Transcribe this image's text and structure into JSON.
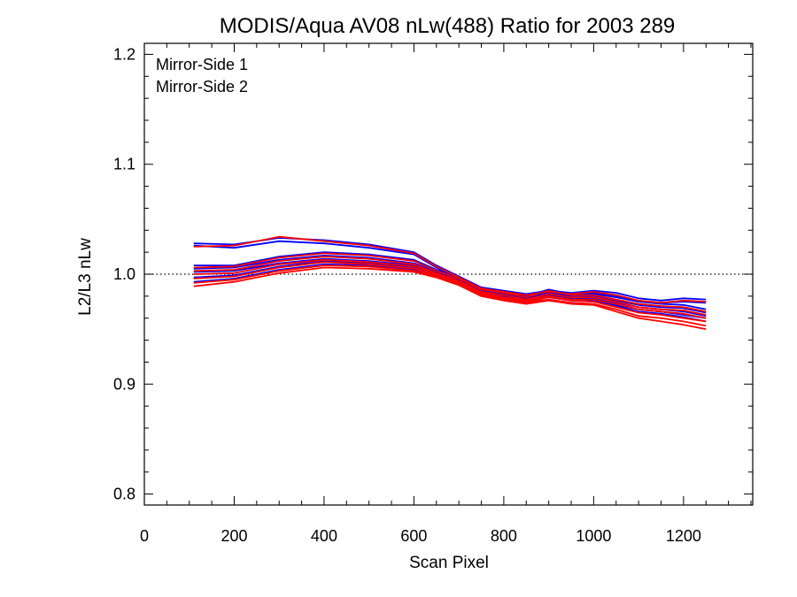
{
  "chart_data": {
    "type": "line",
    "title": "MODIS/Aqua AV08 nLw(488) Ratio for 2003 289",
    "xlabel": "Scan Pixel",
    "ylabel": "L2/L3 nLw",
    "xlim": [
      0,
      1354
    ],
    "ylim": [
      0.79,
      1.21
    ],
    "x_ticks": [
      "0",
      "200",
      "400",
      "600",
      "800",
      "1000",
      "1200"
    ],
    "y_ticks": [
      "0.8",
      "0.9",
      "1.0",
      "1.1",
      "1.2"
    ],
    "reference_line": {
      "y": 1.0,
      "style": "dotted",
      "color": "#000000"
    },
    "legend": {
      "placement": "top-left",
      "entries": [
        {
          "label": "Mirror-Side 1",
          "color": "#0000ff"
        },
        {
          "label": "Mirror-Side 2",
          "color": "#ff0000"
        }
      ]
    },
    "x": [
      110,
      200,
      300,
      400,
      500,
      600,
      650,
      700,
      750,
      800,
      850,
      900,
      950,
      1000,
      1050,
      1100,
      1150,
      1200,
      1250
    ],
    "series": [
      {
        "group": "Mirror-Side 1",
        "color": "#0000ff",
        "values": [
          1.028,
          1.027,
          1.033,
          1.031,
          1.027,
          1.02,
          1.008,
          0.998,
          0.988,
          0.985,
          0.982,
          0.985,
          0.983,
          0.985,
          0.983,
          0.978,
          0.976,
          0.978,
          0.977
        ]
      },
      {
        "group": "Mirror-Side 1",
        "color": "#0000ff",
        "values": [
          1.026,
          1.024,
          1.03,
          1.028,
          1.024,
          1.018,
          1.006,
          0.996,
          0.986,
          0.983,
          0.98,
          0.983,
          0.981,
          0.983,
          0.98,
          0.975,
          0.974,
          0.975,
          0.974
        ]
      },
      {
        "group": "Mirror-Side 1",
        "color": "#0000ff",
        "values": [
          1.008,
          1.008,
          1.016,
          1.02,
          1.018,
          1.013,
          1.004,
          0.997,
          0.987,
          0.984,
          0.98,
          0.986,
          0.982,
          0.982,
          0.979,
          0.975,
          0.973,
          0.972,
          0.968
        ]
      },
      {
        "group": "Mirror-Side 1",
        "color": "#0000ff",
        "values": [
          1.005,
          1.006,
          1.013,
          1.017,
          1.015,
          1.01,
          1.002,
          0.995,
          0.985,
          0.982,
          0.978,
          0.983,
          0.98,
          0.98,
          0.976,
          0.972,
          0.97,
          0.969,
          0.965
        ]
      },
      {
        "group": "Mirror-Side 1",
        "color": "#0000ff",
        "values": [
          1.002,
          1.003,
          1.01,
          1.014,
          1.012,
          1.008,
          1.001,
          0.994,
          0.984,
          0.98,
          0.977,
          0.981,
          0.978,
          0.978,
          0.974,
          0.97,
          0.968,
          0.966,
          0.962
        ]
      },
      {
        "group": "Mirror-Side 1",
        "color": "#0000ff",
        "values": [
          0.997,
          0.999,
          1.007,
          1.012,
          1.01,
          1.006,
          1.0,
          0.993,
          0.983,
          0.979,
          0.976,
          0.98,
          0.977,
          0.976,
          0.972,
          0.968,
          0.966,
          0.963,
          0.96
        ]
      },
      {
        "group": "Mirror-Side 1",
        "color": "#0000ff",
        "values": [
          0.993,
          0.996,
          1.004,
          1.009,
          1.008,
          1.004,
          0.999,
          0.992,
          0.982,
          0.978,
          0.975,
          0.979,
          0.976,
          0.975,
          0.971,
          0.966,
          0.964,
          0.961,
          0.957
        ]
      },
      {
        "group": "Mirror-Side 2",
        "color": "#ff0000",
        "values": [
          1.025,
          1.026,
          1.034,
          1.03,
          1.026,
          1.019,
          1.007,
          0.997,
          0.987,
          0.984,
          0.981,
          0.984,
          0.982,
          0.984,
          0.981,
          0.976,
          0.974,
          0.976,
          0.975
        ]
      },
      {
        "group": "Mirror-Side 2",
        "color": "#ff0000",
        "values": [
          1.006,
          1.007,
          1.015,
          1.019,
          1.017,
          1.012,
          1.003,
          0.996,
          0.986,
          0.983,
          0.979,
          0.985,
          0.981,
          0.981,
          0.977,
          0.973,
          0.971,
          0.97,
          0.966
        ]
      },
      {
        "group": "Mirror-Side 2",
        "color": "#ff0000",
        "values": [
          1.003,
          1.004,
          1.012,
          1.016,
          1.014,
          1.009,
          1.001,
          0.994,
          0.984,
          0.981,
          0.977,
          0.982,
          0.979,
          0.979,
          0.975,
          0.97,
          0.968,
          0.967,
          0.963
        ]
      },
      {
        "group": "Mirror-Side 2",
        "color": "#ff0000",
        "values": [
          1.0,
          1.001,
          1.009,
          1.013,
          1.011,
          1.007,
          1.0,
          0.993,
          0.983,
          0.979,
          0.976,
          0.98,
          0.977,
          0.977,
          0.973,
          0.968,
          0.966,
          0.964,
          0.96
        ]
      },
      {
        "group": "Mirror-Side 2",
        "color": "#ff0000",
        "values": [
          0.996,
          0.998,
          1.006,
          1.011,
          1.009,
          1.005,
          0.999,
          0.992,
          0.982,
          0.978,
          0.975,
          0.979,
          0.976,
          0.975,
          0.97,
          0.965,
          0.963,
          0.96,
          0.957
        ]
      },
      {
        "group": "Mirror-Side 2",
        "color": "#ff0000",
        "values": [
          0.992,
          0.995,
          1.003,
          1.008,
          1.007,
          1.003,
          0.998,
          0.991,
          0.981,
          0.977,
          0.974,
          0.977,
          0.974,
          0.973,
          0.968,
          0.962,
          0.96,
          0.957,
          0.953
        ]
      },
      {
        "group": "Mirror-Side 2",
        "color": "#ff0000",
        "values": [
          0.989,
          0.993,
          1.001,
          1.006,
          1.005,
          1.002,
          0.997,
          0.99,
          0.98,
          0.976,
          0.973,
          0.976,
          0.973,
          0.972,
          0.966,
          0.96,
          0.957,
          0.954,
          0.95
        ]
      }
    ]
  }
}
